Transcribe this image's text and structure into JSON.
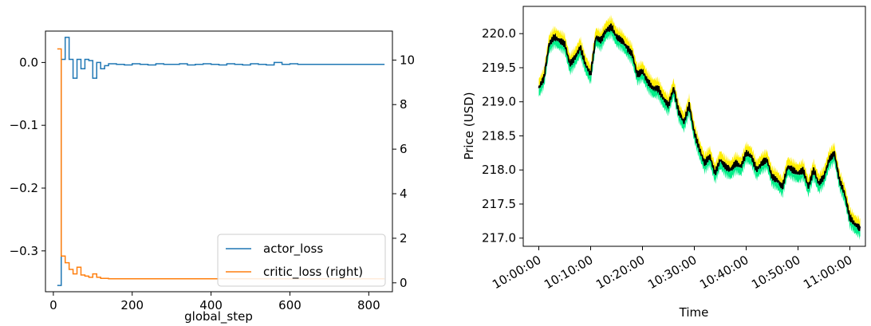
{
  "chart_data": [
    {
      "type": "line",
      "xlabel": "global_step",
      "ylabel": "",
      "xlim": [
        -20,
        860
      ],
      "ylim_left": [
        -0.365,
        0.05
      ],
      "ylim_right": [
        -0.4,
        11.3
      ],
      "xticks": [
        0,
        200,
        400,
        600,
        800
      ],
      "xtick_labels": [
        "0",
        "200",
        "400",
        "600",
        "800"
      ],
      "yticks_left": [
        -0.3,
        -0.2,
        -0.1,
        0.0
      ],
      "ytick_labels_left": [
        "−0.3",
        "−0.2",
        "−0.1",
        "0.0"
      ],
      "yticks_right": [
        0,
        2,
        4,
        6,
        8,
        10
      ],
      "ytick_labels_right": [
        "0",
        "2",
        "4",
        "6",
        "8",
        "10"
      ],
      "legend": {
        "placement": "lower-right",
        "entries": [
          "actor_loss",
          "critic_loss (right)"
        ]
      },
      "series": [
        {
          "name": "actor_loss",
          "axis": "left",
          "color": "#1f77b4",
          "step": true,
          "x": [
            10,
            20,
            30,
            40,
            50,
            60,
            70,
            80,
            90,
            100,
            110,
            120,
            130,
            140,
            160,
            180,
            200,
            220,
            240,
            260,
            280,
            300,
            320,
            340,
            360,
            380,
            400,
            420,
            440,
            460,
            480,
            500,
            520,
            540,
            560,
            580,
            600,
            620,
            700,
            800,
            840
          ],
          "y": [
            -0.355,
            0.005,
            0.04,
            0.005,
            -0.025,
            0.005,
            -0.01,
            0.005,
            0.003,
            -0.025,
            0.0,
            -0.01,
            -0.005,
            -0.002,
            -0.003,
            -0.004,
            -0.002,
            -0.003,
            -0.004,
            -0.002,
            -0.003,
            -0.003,
            -0.002,
            -0.004,
            -0.003,
            -0.002,
            -0.003,
            -0.004,
            -0.002,
            -0.003,
            -0.004,
            -0.002,
            -0.003,
            -0.004,
            0.0,
            -0.003,
            -0.002,
            -0.003,
            -0.003,
            -0.003,
            -0.003
          ]
        },
        {
          "name": "critic_loss (right)",
          "axis": "right",
          "color": "#ff7f0e",
          "step": true,
          "x": [
            10,
            20,
            30,
            40,
            50,
            60,
            70,
            80,
            90,
            100,
            110,
            120,
            140,
            200,
            300,
            400,
            500,
            600,
            700,
            800,
            840
          ],
          "y": [
            10.5,
            1.2,
            0.9,
            0.6,
            0.4,
            0.7,
            0.35,
            0.3,
            0.25,
            0.4,
            0.25,
            0.2,
            0.18,
            0.18,
            0.18,
            0.18,
            0.18,
            0.18,
            0.18,
            0.18,
            0.18
          ]
        }
      ]
    },
    {
      "type": "line",
      "xlabel": "Time",
      "ylabel": "Price (USD)",
      "xlim_minutes": [
        -3,
        63
      ],
      "ylim": [
        216.88,
        220.4
      ],
      "xticks_minutes": [
        0,
        10,
        20,
        30,
        40,
        50,
        60
      ],
      "xtick_labels": [
        "10:00:00",
        "10:10:00",
        "10:20:00",
        "10:30:00",
        "10:40:00",
        "10:50:00",
        "11:00:00"
      ],
      "yticks": [
        217.0,
        217.5,
        218.0,
        218.5,
        219.0,
        219.5,
        220.0
      ],
      "ytick_labels": [
        "217.0",
        "217.5",
        "218.0",
        "218.5",
        "219.0",
        "219.5",
        "220.0"
      ],
      "band_colors": {
        "upper": "#ffee00",
        "lower": "#00ee88",
        "mid": "#000000"
      },
      "series": [
        {
          "name": "",
          "time": [
            "10:00:00",
            "10:01:00",
            "10:02:00",
            "10:03:00",
            "10:04:00",
            "10:05:00",
            "10:06:00",
            "10:07:00",
            "10:08:00",
            "10:09:00",
            "10:10:00",
            "10:11:00",
            "10:12:00",
            "10:13:00",
            "10:14:00",
            "10:15:00",
            "10:16:00",
            "10:17:00",
            "10:18:00",
            "10:19:00",
            "10:20:00",
            "10:21:00",
            "10:22:00",
            "10:23:00",
            "10:24:00",
            "10:25:00",
            "10:26:00",
            "10:27:00",
            "10:28:00",
            "10:29:00",
            "10:30:00",
            "10:31:00",
            "10:32:00",
            "10:33:00",
            "10:34:00",
            "10:35:00",
            "10:36:00",
            "10:37:00",
            "10:38:00",
            "10:39:00",
            "10:40:00",
            "10:41:00",
            "10:42:00",
            "10:43:00",
            "10:44:00",
            "10:45:00",
            "10:46:00",
            "10:47:00",
            "10:48:00",
            "10:49:00",
            "10:50:00",
            "10:51:00",
            "10:52:00",
            "10:53:00",
            "10:54:00",
            "10:55:00",
            "10:56:00",
            "10:57:00",
            "10:58:00",
            "10:59:00",
            "11:00:00",
            "11:01:00",
            "11:02:00"
          ],
          "mid": [
            219.2,
            219.35,
            219.85,
            219.95,
            219.9,
            219.85,
            219.55,
            219.65,
            219.8,
            219.55,
            219.4,
            219.95,
            219.9,
            220.05,
            220.1,
            219.95,
            219.9,
            219.8,
            219.7,
            219.4,
            219.45,
            219.3,
            219.2,
            219.2,
            219.05,
            218.95,
            219.2,
            218.85,
            218.7,
            218.95,
            218.55,
            218.3,
            218.1,
            218.2,
            217.95,
            218.15,
            218.05,
            218.0,
            218.1,
            218.05,
            218.25,
            218.2,
            218.0,
            218.1,
            218.15,
            217.9,
            217.85,
            217.75,
            218.05,
            218.0,
            217.95,
            218.0,
            217.75,
            218.0,
            217.8,
            217.9,
            218.15,
            218.25,
            217.85,
            217.65,
            217.3,
            217.2,
            217.15
          ],
          "band_half_width": 0.06
        }
      ]
    }
  ]
}
